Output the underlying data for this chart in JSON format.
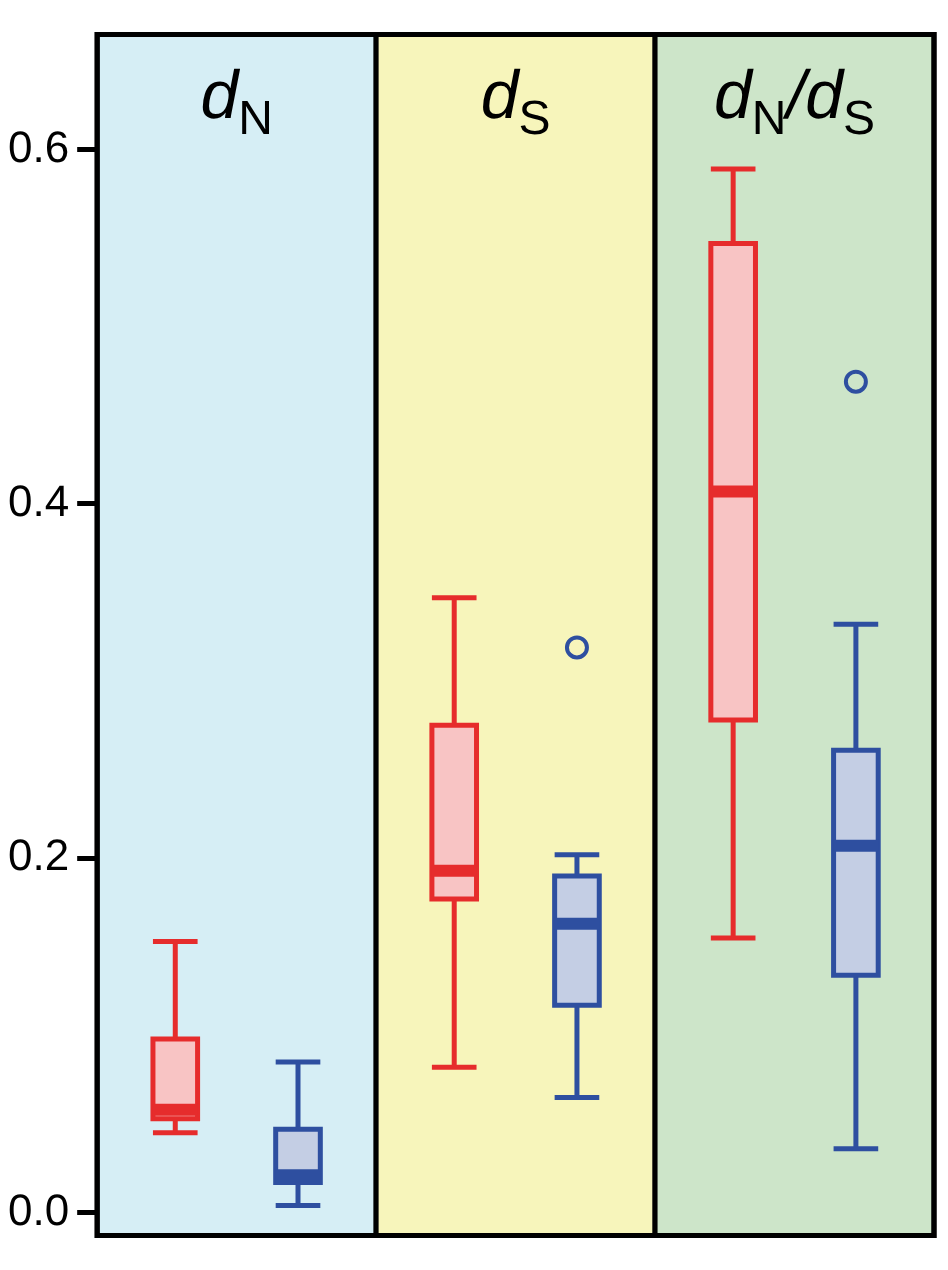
{
  "chart_data": {
    "type": "box",
    "categories": [
      "d$_{N}$",
      "d$_{S}$",
      "d$_{N}$/d$_{S}$"
    ],
    "ylim": [
      -0.013,
      0.665
    ],
    "yticks": [
      {
        "value": 0,
        "label": "0.0"
      },
      0.2,
      0.4,
      0.6
    ],
    "legend": false,
    "series": [
      {
        "color": "#e62c2c",
        "boxes": [
          {
            "low": 0.045,
            "q1": 0.053,
            "median": 0.058,
            "q3": 0.098,
            "high": 0.153
          },
          {
            "low": 0.082,
            "q1": 0.177,
            "median": 0.193,
            "q3": 0.275,
            "high": 0.347
          },
          {
            "low": 0.155,
            "q1": 0.278,
            "median": 0.407,
            "q3": 0.547,
            "high": 0.589
          }
        ]
      },
      {
        "color": "#2e4fa0",
        "boxes": [
          {
            "low": 0.004,
            "q1": 0.017,
            "median": 0.021,
            "q3": 0.047,
            "high": 0.085
          },
          {
            "low": 0.065,
            "q1": 0.117,
            "median": 0.163,
            "q3": 0.19,
            "high": 0.202,
            "outliers": [
              0.319
            ]
          },
          {
            "low": 0.036,
            "q1": 0.134,
            "median": 0.207,
            "q3": 0.261,
            "high": 0.332,
            "outliers": [
              0.469
            ]
          }
        ]
      }
    ],
    "bands": [
      {
        "axis": "x",
        "from": "d$_{N}$",
        "to": "d$_{N}$",
        "color": "#d6eef5"
      },
      {
        "axis": "x",
        "from": "d$_{S}$",
        "to": "d$_{S}$",
        "color": "#f7f5bb"
      },
      {
        "axis": "x",
        "from": "d$_{N}$/d$_{S}$",
        "to": "d$_{N}$/d$_{S}$",
        "color": "#cde5c9"
      }
    ]
  }
}
